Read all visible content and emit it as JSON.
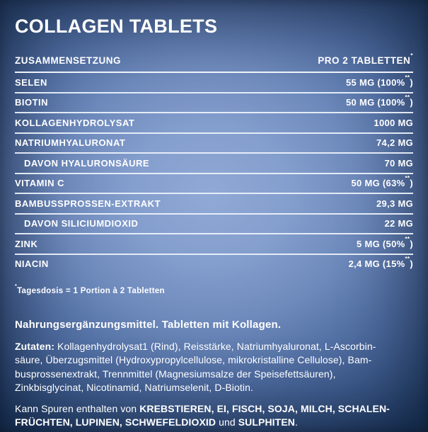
{
  "title": "COLLAGEN TABLETS",
  "table": {
    "header": {
      "left": "ZUSAMMENSETZUNG",
      "right": "PRO 2 TABLETTEN",
      "right_sup": "*"
    },
    "rows": [
      {
        "label": "SELEN",
        "indent": false,
        "value": "55 MG (100%",
        "value_sup": "**",
        "value_post": ")"
      },
      {
        "label": "BIOTIN",
        "indent": false,
        "value": "50 MG (100%",
        "value_sup": "**",
        "value_post": ")"
      },
      {
        "label": "KOLLAGENHYDROLYSAT",
        "indent": false,
        "value": "1000 MG",
        "value_sup": "",
        "value_post": ""
      },
      {
        "label": "NATRIUMHYALURONAT",
        "indent": false,
        "value": "74,2 MG",
        "value_sup": "",
        "value_post": ""
      },
      {
        "label": "DAVON HYALURONSÄURE",
        "indent": true,
        "value": "70 MG",
        "value_sup": "",
        "value_post": ""
      },
      {
        "label": "VITAMIN C",
        "indent": false,
        "value": "50 MG (63%",
        "value_sup": "**",
        "value_post": ")"
      },
      {
        "label": "BAMBUSSPROSSEN-EXTRAKT",
        "indent": false,
        "value": "29,3 MG",
        "value_sup": "",
        "value_post": ""
      },
      {
        "label": "DAVON SILICIUMDIOXID",
        "indent": true,
        "value": "22 MG",
        "value_sup": "",
        "value_post": ""
      },
      {
        "label": "ZINK",
        "indent": false,
        "value": "5 MG (50%",
        "value_sup": "**",
        "value_post": ")"
      },
      {
        "label": "NIACIN",
        "indent": false,
        "value": "2,4 MG (15%",
        "value_sup": "**",
        "value_post": ")"
      }
    ]
  },
  "footnote": {
    "sup": "*",
    "text": "Tagesdosis = 1 Portion à 2 Tabletten"
  },
  "description": "Nahrungsergänzungsmittel. Tabletten mit Kollagen.",
  "ingredients": {
    "segments": [
      {
        "text": "Zutaten:",
        "bold": true
      },
      {
        "text": "  Kollagenhydrolysat1 (Rind), Reisstärke, Natriumhyaluronat, L-Ascorbin-\nsäure, Überzugsmittel (Hydroxypropylcellulose, mikrokristalline Cellulose), Bam-\nbusprossenextrakt, Trennmittel (Magnesiumsalze der Speisefettsäuren),\nZinkbisglycinat, Nicotinamid, Natriumselenit, D-Biotin.",
        "bold": false
      }
    ]
  },
  "allergens": {
    "segments": [
      {
        "text": "Kann Spuren enthalten von ",
        "bold": false
      },
      {
        "text": "KREBSTIEREN, EI, FISCH, SOJA, MILCH, SCHALEN-\nFRÜCHTEN, LUPINEN, SCHWEFELDIOXID",
        "bold": true
      },
      {
        "text": " und ",
        "bold": false
      },
      {
        "text": "SULPHITEN",
        "bold": true
      },
      {
        "text": ".",
        "bold": false
      }
    ]
  },
  "colors": {
    "background_center": "#90a9d6",
    "background_edge": "#1a3458",
    "separator": "#eef3fb",
    "text": "#ffffff"
  }
}
